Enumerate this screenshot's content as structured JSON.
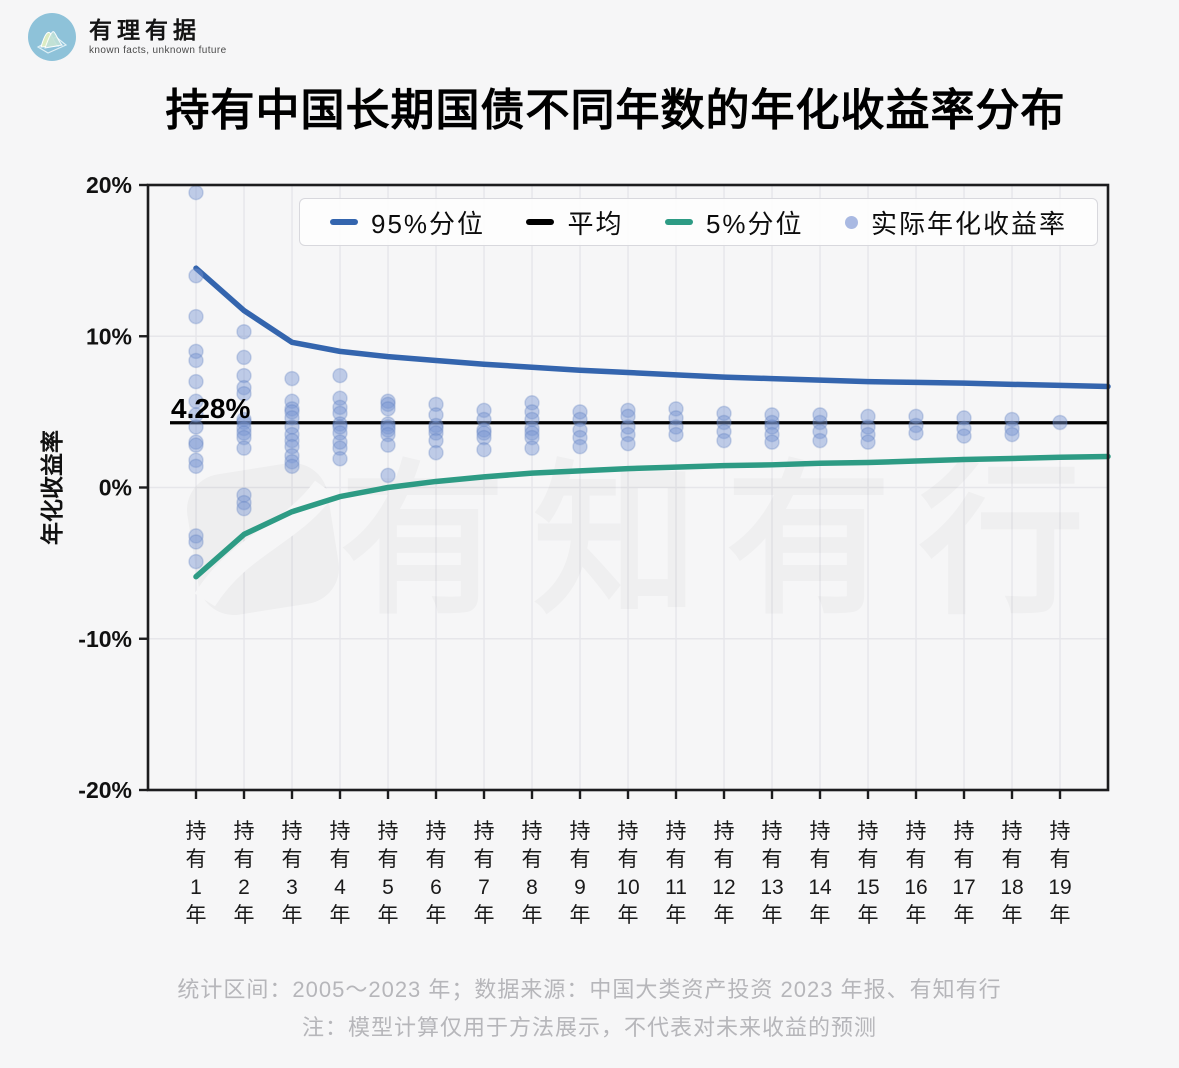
{
  "brand": {
    "name": "有理有据",
    "tagline": "known facts, unknown future"
  },
  "title": "持有中国长期国债不同年数的年化收益率分布",
  "watermark": {
    "text": "有知有行"
  },
  "footer": {
    "line1": "统计区间：2005～2023 年；数据来源：中国大类资产投资 2023 年报、有知有行",
    "line2": "注：模型计算仅用于方法展示，不代表对未来收益的预测"
  },
  "colors": {
    "background": "#f6f6f7",
    "grid": "#e6e6ea",
    "axis": "#1c1c1e",
    "p95_line": "#3465ae",
    "p5_line": "#2d9b84",
    "average_line": "#000000",
    "scatter_fill": "#7b97d3",
    "scatter_edge": "#5d7cc0",
    "legend_dot": "#a9b9e2",
    "footer_text": "#b6b6ba"
  },
  "chart_data": {
    "type": "scatter",
    "title": "持有中国长期国债不同年数的年化收益率分布",
    "xlabel": "",
    "ylabel": "年化收益率",
    "ylim": [
      -20,
      20
    ],
    "grid": true,
    "legend_position": "top",
    "x_categories": [
      "持有1年",
      "持有2年",
      "持有3年",
      "持有4年",
      "持有5年",
      "持有6年",
      "持有7年",
      "持有8年",
      "持有9年",
      "持有10年",
      "持有11年",
      "持有12年",
      "持有13年",
      "持有14年",
      "持有15年",
      "持有16年",
      "持有17年",
      "持有18年",
      "持有19年"
    ],
    "y_ticks": [
      {
        "value": 20,
        "label": "20%"
      },
      {
        "value": 10,
        "label": "10%"
      },
      {
        "value": 0,
        "label": "0%"
      },
      {
        "value": -10,
        "label": "-10%"
      },
      {
        "value": -20,
        "label": "-20%"
      }
    ],
    "average": {
      "name": "平均",
      "value": 4.28,
      "label": "4.28%"
    },
    "series": [
      {
        "name": "95%分位",
        "values": [
          14.5,
          11.7,
          9.6,
          9.0,
          8.65,
          8.4,
          8.15,
          7.95,
          7.75,
          7.6,
          7.45,
          7.3,
          7.2,
          7.1,
          7.0,
          6.95,
          6.9,
          6.82,
          6.75
        ],
        "edge_extension": 6.68
      },
      {
        "name": "5%分位",
        "values": [
          -5.9,
          -3.1,
          -1.6,
          -0.6,
          0.0,
          0.4,
          0.7,
          0.95,
          1.1,
          1.25,
          1.35,
          1.45,
          1.5,
          1.6,
          1.65,
          1.75,
          1.85,
          1.92,
          2.0
        ],
        "edge_extension": 2.05
      }
    ],
    "scatter_series": {
      "name": "实际年化收益率",
      "points_by_year": [
        [
          19.5,
          14.0,
          11.3,
          9.0,
          8.4,
          7.0,
          5.7,
          4.8,
          4.0,
          3.0,
          2.8,
          1.8,
          1.4,
          -3.2,
          -3.6,
          -4.9
        ],
        [
          10.3,
          8.6,
          7.4,
          6.6,
          6.2,
          4.5,
          4.3,
          3.9,
          3.6,
          3.3,
          2.6,
          -0.5,
          -1.0,
          -1.4
        ],
        [
          7.2,
          5.7,
          5.2,
          5.0,
          4.6,
          4.0,
          3.5,
          3.1,
          2.7,
          2.1,
          1.7,
          1.4
        ],
        [
          7.4,
          5.9,
          5.3,
          4.9,
          4.2,
          4.0,
          3.6,
          3.0,
          2.6,
          1.9
        ],
        [
          5.7,
          5.5,
          5.2,
          4.2,
          4.0,
          3.8,
          3.5,
          2.8,
          0.8
        ],
        [
          5.5,
          4.8,
          4.1,
          3.9,
          3.6,
          3.1,
          2.3
        ],
        [
          5.1,
          4.5,
          3.8,
          3.6,
          3.3,
          2.5
        ],
        [
          5.6,
          5.0,
          4.5,
          3.9,
          3.6,
          3.3,
          2.6
        ],
        [
          5.0,
          4.5,
          3.8,
          3.3,
          2.7
        ],
        [
          5.1,
          4.7,
          4.0,
          3.5,
          2.9
        ],
        [
          5.2,
          4.6,
          4.0,
          3.5
        ],
        [
          4.9,
          4.3,
          3.7,
          3.1
        ],
        [
          4.8,
          4.3,
          4.0,
          3.5,
          3.0
        ],
        [
          4.8,
          4.3,
          3.7,
          3.1
        ],
        [
          4.7,
          4.0,
          3.5,
          3.0
        ],
        [
          4.7,
          4.1,
          3.6
        ],
        [
          4.6,
          3.9,
          3.4
        ],
        [
          4.5,
          3.9,
          3.5
        ],
        [
          4.3
        ]
      ]
    },
    "legend": [
      {
        "marker": "line",
        "color": "#3465ae",
        "label": "95%分位"
      },
      {
        "marker": "line",
        "color": "#000000",
        "label": "平均"
      },
      {
        "marker": "line",
        "color": "#2d9b84",
        "label": "5%分位"
      },
      {
        "marker": "dot",
        "color": "#a9b9e2",
        "label": "实际年化收益率"
      }
    ]
  }
}
